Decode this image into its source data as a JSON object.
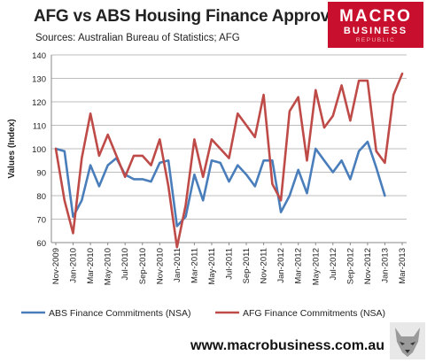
{
  "header": {
    "title": "AFG vs ABS Housing Finance Approvals",
    "subtitle": "Sources: Australian Bureau of Statistics; AFG"
  },
  "logo": {
    "line1": "MACRO",
    "line2": "BUSINESS",
    "line3": "REPUBLIC"
  },
  "footer": {
    "url": "www.macrobusiness.com.au"
  },
  "chart_data": {
    "type": "line",
    "title": "AFG vs ABS Housing Finance Approvals",
    "ylabel": "Values (Index)",
    "xlabel": "",
    "ylim": [
      60,
      140
    ],
    "yticks": [
      60,
      70,
      80,
      90,
      100,
      110,
      120,
      130,
      140
    ],
    "grid": "horizontal",
    "legend_position": "bottom",
    "x": [
      "Nov-2009",
      "Dec-2009",
      "Jan-2010",
      "Feb-2010",
      "Mar-2010",
      "Apr-2010",
      "May-2010",
      "Jun-2010",
      "Jul-2010",
      "Aug-2010",
      "Sep-2010",
      "Oct-2010",
      "Nov-2010",
      "Dec-2010",
      "Jan-2011",
      "Feb-2011",
      "Mar-2011",
      "Apr-2011",
      "May-2011",
      "Jun-2011",
      "Jul-2011",
      "Aug-2011",
      "Sep-2011",
      "Oct-2011",
      "Nov-2011",
      "Dec-2011",
      "Jan-2012",
      "Feb-2012",
      "Mar-2012",
      "Apr-2012",
      "May-2012",
      "Jun-2012",
      "Jul-2012",
      "Aug-2012",
      "Sep-2012",
      "Oct-2012",
      "Nov-2012",
      "Dec-2012",
      "Jan-2013",
      "Feb-2013",
      "Mar-2013"
    ],
    "x_tick_labels": [
      "Nov-2009",
      "Jan-2010",
      "Mar-2010",
      "May-2010",
      "Jul-2010",
      "Sep-2010",
      "Nov-2010",
      "Jan-2011",
      "Mar-2011",
      "May-2011",
      "Jul-2011",
      "Sep-2011",
      "Nov-2011",
      "Jan-2012",
      "Mar-2012",
      "May-2012",
      "Jul-2012",
      "Sep-2012",
      "Nov-2012",
      "Jan-2013",
      "Mar-2013"
    ],
    "series": [
      {
        "name": "ABS Finance Commitments (NSA)",
        "color": "#4a7ebb",
        "values": [
          100,
          99,
          71,
          78,
          93,
          84,
          93,
          96,
          89,
          87,
          87,
          86,
          94,
          95,
          67,
          71,
          89,
          78,
          95,
          94,
          86,
          93,
          89,
          84,
          95,
          95,
          73,
          80,
          91,
          81,
          100,
          95,
          90,
          95,
          87,
          99,
          103,
          92,
          80,
          null,
          null
        ]
      },
      {
        "name": "AFG Finance Commitments (NSA)",
        "color": "#be4b48",
        "values": [
          100,
          78,
          64,
          96,
          115,
          97,
          106,
          97,
          88,
          97,
          97,
          93,
          104,
          84,
          58,
          76,
          104,
          88,
          104,
          100,
          96,
          115,
          110,
          105,
          123,
          85,
          78,
          116,
          122,
          95,
          125,
          109,
          114,
          127,
          112,
          129,
          129,
          99,
          94,
          123,
          132
        ]
      }
    ]
  }
}
